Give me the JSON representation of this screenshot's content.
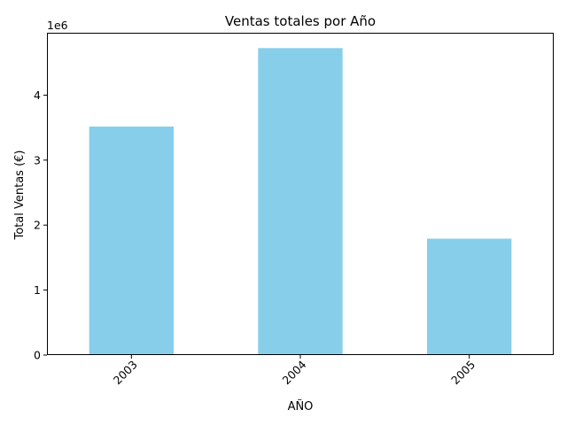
{
  "chart_data": {
    "type": "bar",
    "title": "Ventas totales por Año",
    "xlabel": "AÑO",
    "ylabel": "Total Ventas (€)",
    "y_offset_label": "1e6",
    "categories": [
      "2003",
      "2004",
      "2005"
    ],
    "values": [
      3516979.54,
      4724162.6,
      1791486.71
    ],
    "y_scale": 1000000,
    "ylim": [
      0,
      4960000
    ],
    "yticks": [
      0,
      1000000,
      2000000,
      3000000,
      4000000
    ],
    "ytick_labels": [
      "0",
      "1",
      "2",
      "3",
      "4"
    ],
    "xtick_rotation": 45,
    "bar_color": "#87CEEB",
    "grid": false,
    "legend": "none"
  }
}
